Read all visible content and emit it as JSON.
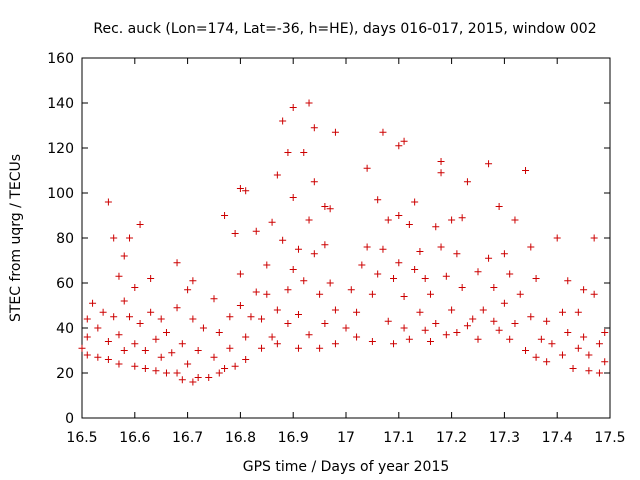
{
  "chart_data": {
    "type": "scatter",
    "title": "Rec. auck (Lon=174, Lat=-36, h=HE), days 016-017, 2015, window 002",
    "xlabel": "GPS time / Days of year 2015",
    "ylabel": "STEC from uqrg / TECUs",
    "xlim": [
      16.5,
      17.5
    ],
    "ylim": [
      0,
      160
    ],
    "xticks": [
      16.5,
      16.6,
      16.7,
      16.8,
      16.9,
      17,
      17.1,
      17.2,
      17.3,
      17.4,
      17.5
    ],
    "xtick_labels": [
      "16.5",
      "16.6",
      "16.7",
      "16.8",
      "16.9",
      "17",
      "17.1",
      "17.2",
      "17.3",
      "17.4",
      "17.5"
    ],
    "yticks": [
      0,
      20,
      40,
      60,
      80,
      100,
      120,
      140,
      160
    ],
    "ytick_labels": [
      "0",
      "20",
      "40",
      "60",
      "80",
      "100",
      "120",
      "140",
      "160"
    ],
    "marker": "+",
    "color": "#cc0000",
    "grid": false,
    "legend": "none",
    "series": [
      {
        "name": "STEC",
        "points": [
          [
            16.5,
            31
          ],
          [
            16.51,
            28
          ],
          [
            16.51,
            36
          ],
          [
            16.51,
            44
          ],
          [
            16.52,
            51
          ],
          [
            16.53,
            27
          ],
          [
            16.53,
            40
          ],
          [
            16.54,
            47
          ],
          [
            16.55,
            96
          ],
          [
            16.55,
            26
          ],
          [
            16.55,
            34
          ],
          [
            16.56,
            45
          ],
          [
            16.56,
            80
          ],
          [
            16.57,
            24
          ],
          [
            16.57,
            37
          ],
          [
            16.57,
            63
          ],
          [
            16.58,
            30
          ],
          [
            16.58,
            52
          ],
          [
            16.58,
            72
          ],
          [
            16.59,
            45
          ],
          [
            16.59,
            80
          ],
          [
            16.6,
            23
          ],
          [
            16.6,
            33
          ],
          [
            16.6,
            58
          ],
          [
            16.61,
            42
          ],
          [
            16.61,
            86
          ],
          [
            16.62,
            22
          ],
          [
            16.62,
            30
          ],
          [
            16.63,
            47
          ],
          [
            16.63,
            62
          ],
          [
            16.64,
            21
          ],
          [
            16.64,
            35
          ],
          [
            16.65,
            27
          ],
          [
            16.65,
            44
          ],
          [
            16.66,
            20
          ],
          [
            16.66,
            38
          ],
          [
            16.67,
            29
          ],
          [
            16.68,
            20
          ],
          [
            16.68,
            49
          ],
          [
            16.68,
            69
          ],
          [
            16.69,
            33
          ],
          [
            16.69,
            17
          ],
          [
            16.7,
            57
          ],
          [
            16.7,
            24
          ],
          [
            16.71,
            16
          ],
          [
            16.71,
            44
          ],
          [
            16.71,
            61
          ],
          [
            16.72,
            30
          ],
          [
            16.72,
            18
          ],
          [
            16.73,
            40
          ],
          [
            16.74,
            18
          ],
          [
            16.75,
            53
          ],
          [
            16.75,
            27
          ],
          [
            16.76,
            20
          ],
          [
            16.76,
            38
          ],
          [
            16.77,
            22
          ],
          [
            16.77,
            90
          ],
          [
            16.78,
            45
          ],
          [
            16.78,
            31
          ],
          [
            16.79,
            82
          ],
          [
            16.79,
            23
          ],
          [
            16.8,
            102
          ],
          [
            16.8,
            50
          ],
          [
            16.8,
            64
          ],
          [
            16.81,
            101
          ],
          [
            16.81,
            36
          ],
          [
            16.81,
            26
          ],
          [
            16.82,
            45
          ],
          [
            16.83,
            83
          ],
          [
            16.83,
            56
          ],
          [
            16.84,
            31
          ],
          [
            16.84,
            44
          ],
          [
            16.85,
            68
          ],
          [
            16.85,
            55
          ],
          [
            16.86,
            87
          ],
          [
            16.86,
            36
          ],
          [
            16.87,
            108
          ],
          [
            16.87,
            48
          ],
          [
            16.87,
            33
          ],
          [
            16.88,
            79
          ],
          [
            16.88,
            132
          ],
          [
            16.89,
            42
          ],
          [
            16.89,
            57
          ],
          [
            16.89,
            118
          ],
          [
            16.9,
            98
          ],
          [
            16.9,
            138
          ],
          [
            16.9,
            66
          ],
          [
            16.91,
            46
          ],
          [
            16.91,
            31
          ],
          [
            16.91,
            75
          ],
          [
            16.92,
            118
          ],
          [
            16.92,
            61
          ],
          [
            16.93,
            140
          ],
          [
            16.93,
            88
          ],
          [
            16.93,
            37
          ],
          [
            16.94,
            129
          ],
          [
            16.94,
            105
          ],
          [
            16.94,
            73
          ],
          [
            16.95,
            31
          ],
          [
            16.95,
            55
          ],
          [
            16.96,
            94
          ],
          [
            16.96,
            77
          ],
          [
            16.96,
            42
          ],
          [
            16.97,
            93
          ],
          [
            16.97,
            60
          ],
          [
            16.98,
            127
          ],
          [
            16.98,
            33
          ],
          [
            16.98,
            48
          ],
          [
            17,
            40
          ],
          [
            17.01,
            57
          ],
          [
            17.02,
            36
          ],
          [
            17.02,
            47
          ],
          [
            17.03,
            68
          ],
          [
            17.04,
            111
          ],
          [
            17.04,
            76
          ],
          [
            17.05,
            34
          ],
          [
            17.05,
            55
          ],
          [
            17.06,
            97
          ],
          [
            17.06,
            64
          ],
          [
            17.07,
            127
          ],
          [
            17.07,
            75
          ],
          [
            17.08,
            43
          ],
          [
            17.08,
            88
          ],
          [
            17.09,
            33
          ],
          [
            17.09,
            62
          ],
          [
            17.1,
            121
          ],
          [
            17.1,
            90
          ],
          [
            17.1,
            69
          ],
          [
            17.11,
            123
          ],
          [
            17.11,
            40
          ],
          [
            17.11,
            54
          ],
          [
            17.12,
            86
          ],
          [
            17.12,
            35
          ],
          [
            17.13,
            96
          ],
          [
            17.13,
            66
          ],
          [
            17.14,
            74
          ],
          [
            17.14,
            47
          ],
          [
            17.15,
            39
          ],
          [
            17.15,
            62
          ],
          [
            17.16,
            34
          ],
          [
            17.16,
            55
          ],
          [
            17.17,
            85
          ],
          [
            17.17,
            42
          ],
          [
            17.18,
            114
          ],
          [
            17.18,
            109
          ],
          [
            17.18,
            76
          ],
          [
            17.19,
            37
          ],
          [
            17.19,
            63
          ],
          [
            17.2,
            88
          ],
          [
            17.2,
            48
          ],
          [
            17.21,
            73
          ],
          [
            17.21,
            38
          ],
          [
            17.22,
            89
          ],
          [
            17.22,
            58
          ],
          [
            17.23,
            105
          ],
          [
            17.23,
            41
          ],
          [
            17.24,
            44
          ],
          [
            17.25,
            65
          ],
          [
            17.25,
            35
          ],
          [
            17.26,
            48
          ],
          [
            17.27,
            113
          ],
          [
            17.27,
            71
          ],
          [
            17.28,
            43
          ],
          [
            17.28,
            58
          ],
          [
            17.29,
            94
          ],
          [
            17.29,
            39
          ],
          [
            17.3,
            73
          ],
          [
            17.3,
            51
          ],
          [
            17.31,
            64
          ],
          [
            17.31,
            35
          ],
          [
            17.32,
            88
          ],
          [
            17.32,
            42
          ],
          [
            17.33,
            55
          ],
          [
            17.34,
            110
          ],
          [
            17.34,
            30
          ],
          [
            17.35,
            76
          ],
          [
            17.35,
            45
          ],
          [
            17.36,
            62
          ],
          [
            17.36,
            27
          ],
          [
            17.37,
            35
          ],
          [
            17.38,
            43
          ],
          [
            17.38,
            25
          ],
          [
            17.39,
            33
          ],
          [
            17.4,
            80
          ],
          [
            17.41,
            47
          ],
          [
            17.41,
            28
          ],
          [
            17.42,
            61
          ],
          [
            17.42,
            38
          ],
          [
            17.43,
            22
          ],
          [
            17.44,
            47
          ],
          [
            17.44,
            31
          ],
          [
            17.45,
            57
          ],
          [
            17.45,
            36
          ],
          [
            17.46,
            21
          ],
          [
            17.46,
            28
          ],
          [
            17.47,
            80
          ],
          [
            17.47,
            55
          ],
          [
            17.48,
            33
          ],
          [
            17.48,
            20
          ],
          [
            17.49,
            38
          ],
          [
            17.49,
            25
          ]
        ]
      }
    ]
  }
}
